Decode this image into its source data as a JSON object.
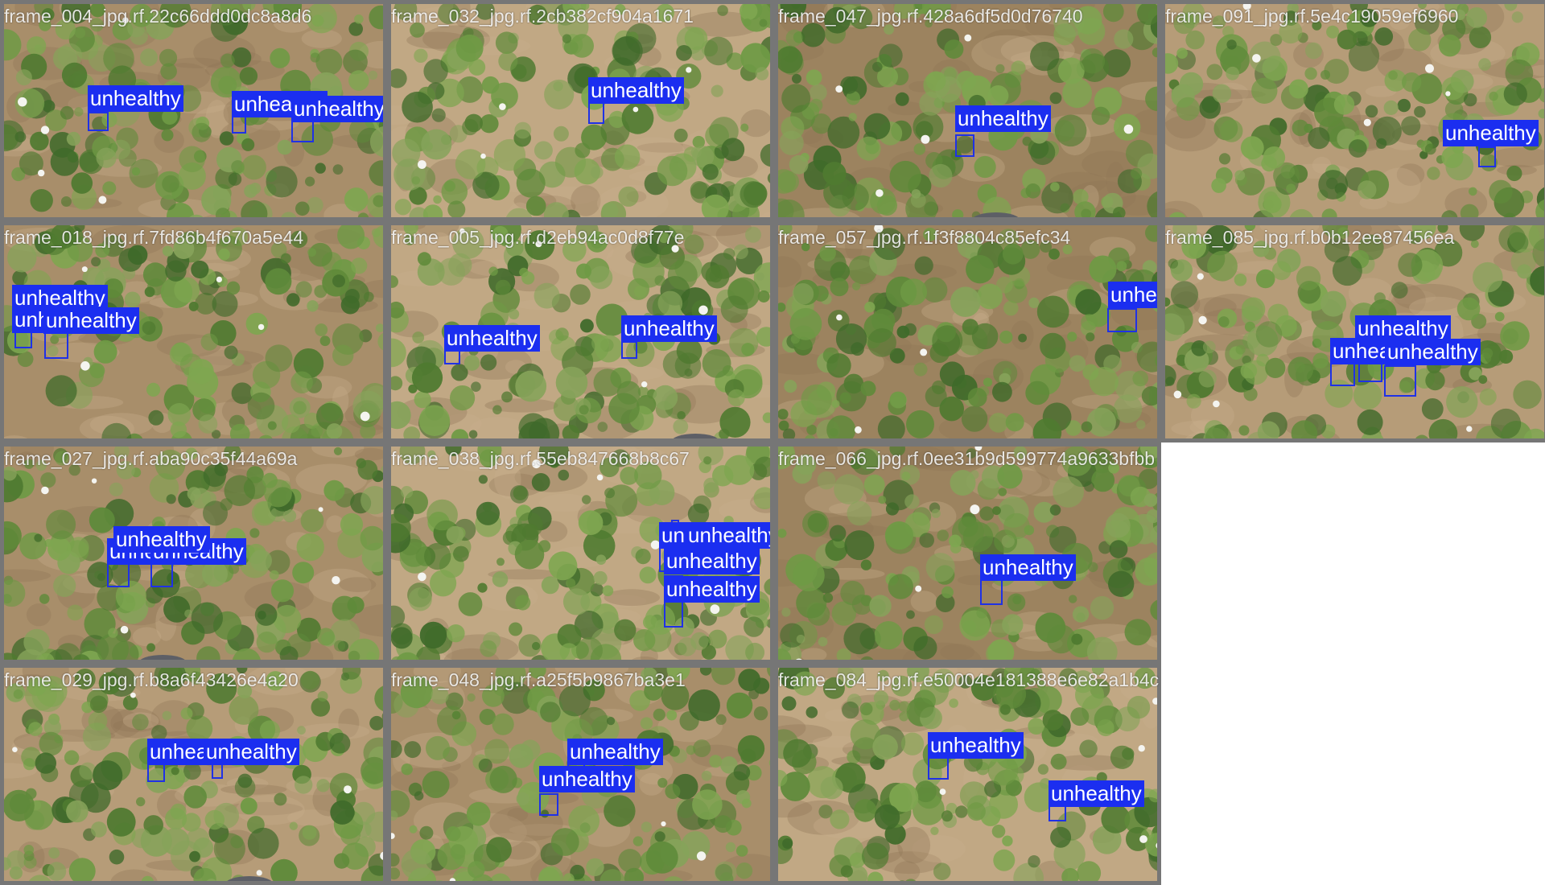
{
  "colors": {
    "tile_border": "#767676",
    "box_color": "#1f31e6",
    "label_background": "#1b2ef0",
    "label_text": "#ffffff",
    "soil": "#b39670",
    "foliage": "#6f8f45"
  },
  "class_name": "unhealthy",
  "tiles": [
    {
      "filename": "frame_004_jpg.rf.22c66ddd0dc8a8d6",
      "detections": 3
    },
    {
      "filename": "frame_032_jpg.rf.2cb382cf904a1671",
      "detections": 1
    },
    {
      "filename": "frame_047_jpg.rf.428a6df5d0d76740",
      "detections": 1
    },
    {
      "filename": "frame_091_jpg.rf.5e4c19059ef6960",
      "detections": 1
    },
    {
      "filename": "frame_018_jpg.rf.7fd86b4f670a5e44",
      "detections": 3
    },
    {
      "filename": "frame_005_jpg.rf.d2eb94ac0d8f77e",
      "detections": 2
    },
    {
      "filename": "frame_057_jpg.rf.1f3f8804c85efc34",
      "detections": 1
    },
    {
      "filename": "frame_085_jpg.rf.b0b12ee87456ea",
      "detections": 3
    },
    {
      "filename": "frame_027_jpg.rf.aba90c35f44a69a",
      "detections": 3
    },
    {
      "filename": "frame_038_jpg.rf.55eb847668b8c67",
      "detections": 4
    },
    {
      "filename": "frame_066_jpg.rf.0ee31b9d599774a9633bfbb",
      "detections": 1
    },
    {
      "filename": "frame_029_jpg.rf.b8a6f43426e4a20",
      "detections": 2
    },
    {
      "filename": "frame_048_jpg.rf.a25f5b9867ba3e1",
      "detections": 2
    },
    {
      "filename": "frame_084_jpg.rf.e50004e181388e6e82a1b4c",
      "detections": 2
    }
  ]
}
